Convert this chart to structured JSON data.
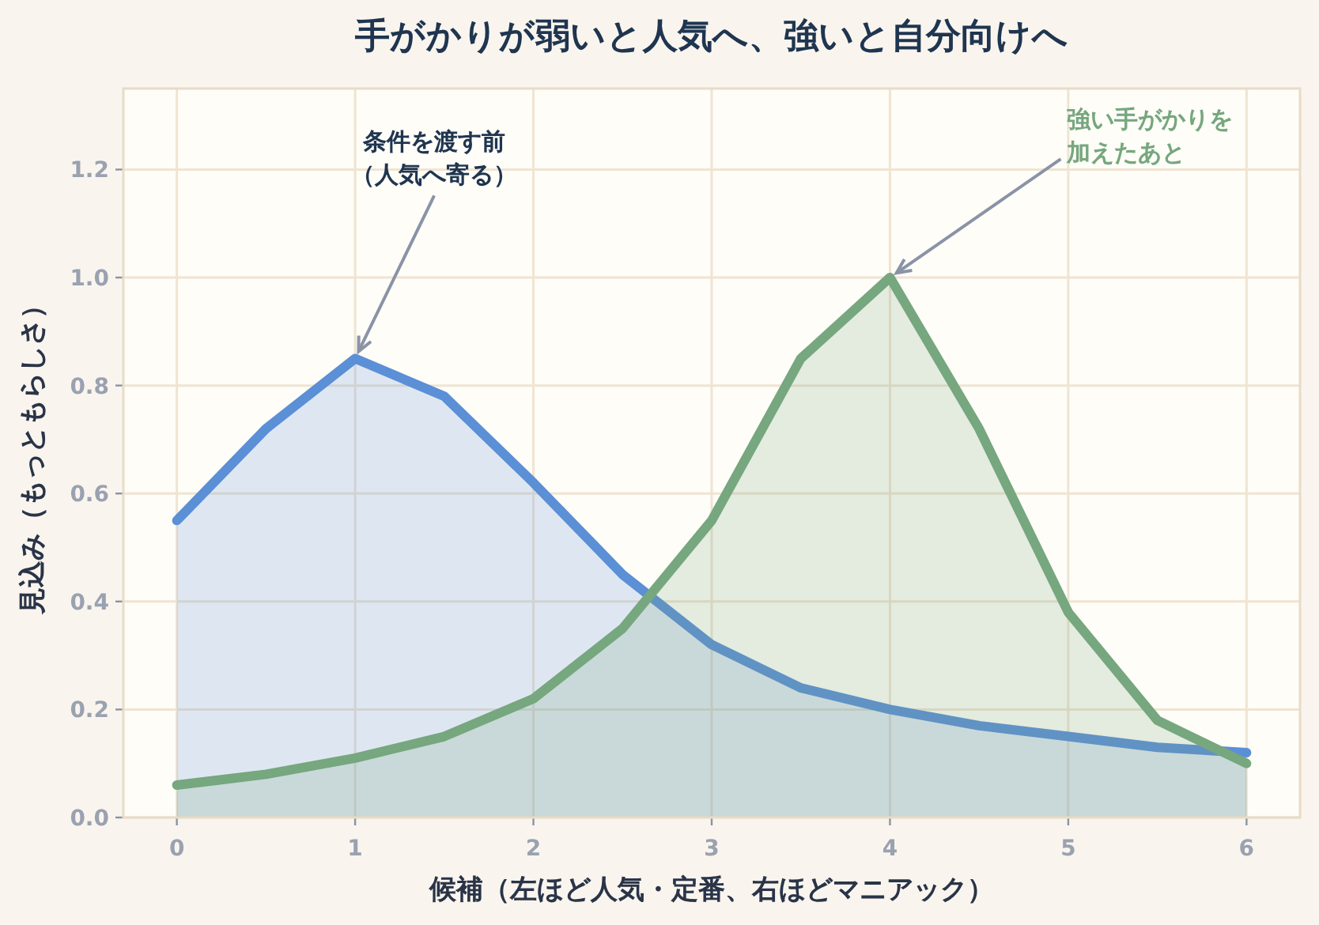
{
  "chart_data": {
    "type": "area",
    "title": "手がかりが弱いと人気へ、強いと自分向けへ",
    "xlabel": "候補（左ほど人気・定番、右ほどマニアック）",
    "ylabel": "見込み（もっともらしさ）",
    "x": [
      0,
      0.5,
      1,
      1.5,
      2,
      2.5,
      3,
      3.5,
      4,
      4.5,
      5,
      5.5,
      6
    ],
    "series": [
      {
        "color": "#5b8fd6",
        "values": [
          0.55,
          0.72,
          0.85,
          0.78,
          0.62,
          0.45,
          0.32,
          0.24,
          0.2,
          0.17,
          0.15,
          0.13,
          0.12
        ]
      },
      {
        "color": "#76a77e",
        "values": [
          0.06,
          0.08,
          0.11,
          0.15,
          0.22,
          0.35,
          0.55,
          0.85,
          1.0,
          0.72,
          0.38,
          0.18,
          0.1
        ]
      }
    ],
    "xlim": [
      -0.3,
      6.3
    ],
    "ylim": [
      0,
      1.35
    ],
    "xticks": [
      0,
      1,
      2,
      3,
      4,
      5,
      6
    ],
    "yticks": [
      {
        "value": 0,
        "label": "0.0"
      },
      {
        "value": 0.2,
        "label": "0.2"
      },
      {
        "value": 0.4,
        "label": "0.4"
      },
      {
        "value": 0.6,
        "label": "0.6"
      },
      {
        "value": 0.8,
        "label": "0.8"
      },
      {
        "value": 1.0,
        "label": "1.0"
      },
      {
        "value": 1.2,
        "label": "1.2"
      }
    ],
    "grid": true,
    "annotations": [
      {
        "text": "条件を渡す前（人気へ寄る）",
        "x": 1,
        "y": 0.85
      },
      {
        "text": "強い手がかりを加えたあと",
        "x": 4,
        "y": 1.0
      }
    ]
  }
}
